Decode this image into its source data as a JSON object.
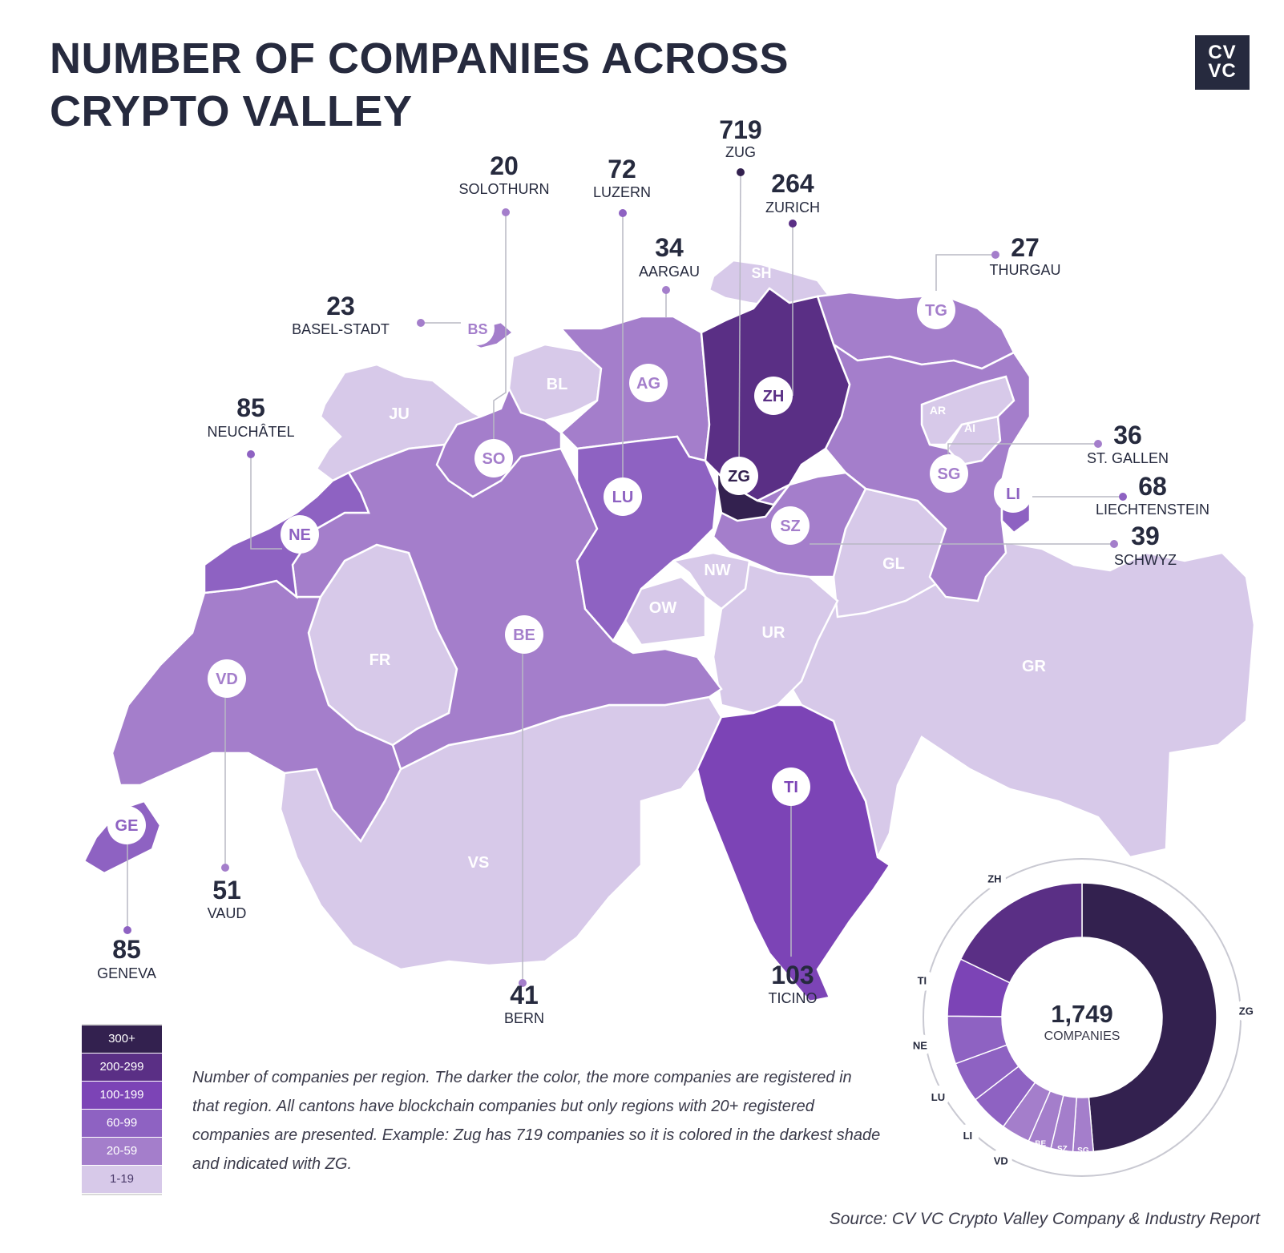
{
  "title_line1": "NUMBER OF COMPANIES ACROSS",
  "title_line2": "CRYPTO VALLEY",
  "logo_line1": "CV",
  "logo_line2": "VC",
  "colors": {
    "shade_1_19": "#d7c9e9",
    "shade_20_59": "#a47ecb",
    "shade_60_99": "#8e62c2",
    "shade_100_199": "#7c44b6",
    "shade_200_299": "#5a2f85",
    "shade_300_plus": "#33214f",
    "text_dark": "#262a3e"
  },
  "legend": [
    "300+",
    "200-299",
    "100-199",
    "60-99",
    "20-59",
    "1-19"
  ],
  "map_labels": {
    "SH": "SH",
    "BS": "BS",
    "BL": "BL",
    "JU": "JU",
    "SO": "SO",
    "AG": "AG",
    "ZH": "ZH",
    "TG": "TG",
    "AR": "AR",
    "AI": "AI",
    "SG": "SG",
    "LI": "LI",
    "ZG": "ZG",
    "LU": "LU",
    "NE": "NE",
    "SZ": "SZ",
    "GL": "GL",
    "NW": "NW",
    "OW": "OW",
    "UR": "UR",
    "GR": "GR",
    "FR": "FR",
    "BE": "BE",
    "VD": "VD",
    "GE": "GE",
    "VS": "VS",
    "TI": "TI"
  },
  "callouts": {
    "ZG": {
      "value": "719",
      "name": "ZUG"
    },
    "ZH": {
      "value": "264",
      "name": "ZURICH"
    },
    "SO": {
      "value": "20",
      "name": "SOLOTHURN"
    },
    "LU": {
      "value": "72",
      "name": "LUZERN"
    },
    "AG": {
      "value": "34",
      "name": "AARGAU"
    },
    "TG": {
      "value": "27",
      "name": "THURGAU"
    },
    "BS": {
      "value": "23",
      "name": "BASEL-STADT"
    },
    "NE": {
      "value": "85",
      "name": "NEUCHÂTEL"
    },
    "SG": {
      "value": "36",
      "name": "ST. GALLEN"
    },
    "LI": {
      "value": "68",
      "name": "LIECHTENSTEIN"
    },
    "SZ": {
      "value": "39",
      "name": "SCHWYZ"
    },
    "VD": {
      "value": "51",
      "name": "VAUD"
    },
    "GE": {
      "value": "85",
      "name": "GENEVA"
    },
    "BE": {
      "value": "41",
      "name": "BERN"
    },
    "TI": {
      "value": "103",
      "name": "TICINO"
    }
  },
  "donut": {
    "total": "1,749",
    "caption": "COMPANIES",
    "segments": [
      {
        "code": "ZG",
        "value": 719,
        "color": "#33214f"
      },
      {
        "code": "SG",
        "value": 36,
        "color": "#a47ecb"
      },
      {
        "code": "SZ",
        "value": 39,
        "color": "#a47ecb"
      },
      {
        "code": "BE",
        "value": 41,
        "color": "#a47ecb"
      },
      {
        "code": "VD",
        "value": 51,
        "color": "#a47ecb"
      },
      {
        "code": "LI",
        "value": 68,
        "color": "#8e62c2"
      },
      {
        "code": "LU",
        "value": 72,
        "color": "#8e62c2"
      },
      {
        "code": "NE",
        "value": 85,
        "color": "#8e62c2"
      },
      {
        "code": "TI",
        "value": 103,
        "color": "#7c44b6"
      },
      {
        "code": "ZH",
        "value": 264,
        "color": "#5a2f85"
      }
    ]
  },
  "note": "Number of companies per region. The darker the color, the more companies are registered in that region. All cantons have blockchain companies but only regions with 20+ registered companies are presented. Example: Zug has 719 companies so it is colored in the darkest shade and indicated with ZG.",
  "source": "Source: CV VC Crypto Valley Company & Industry Report"
}
